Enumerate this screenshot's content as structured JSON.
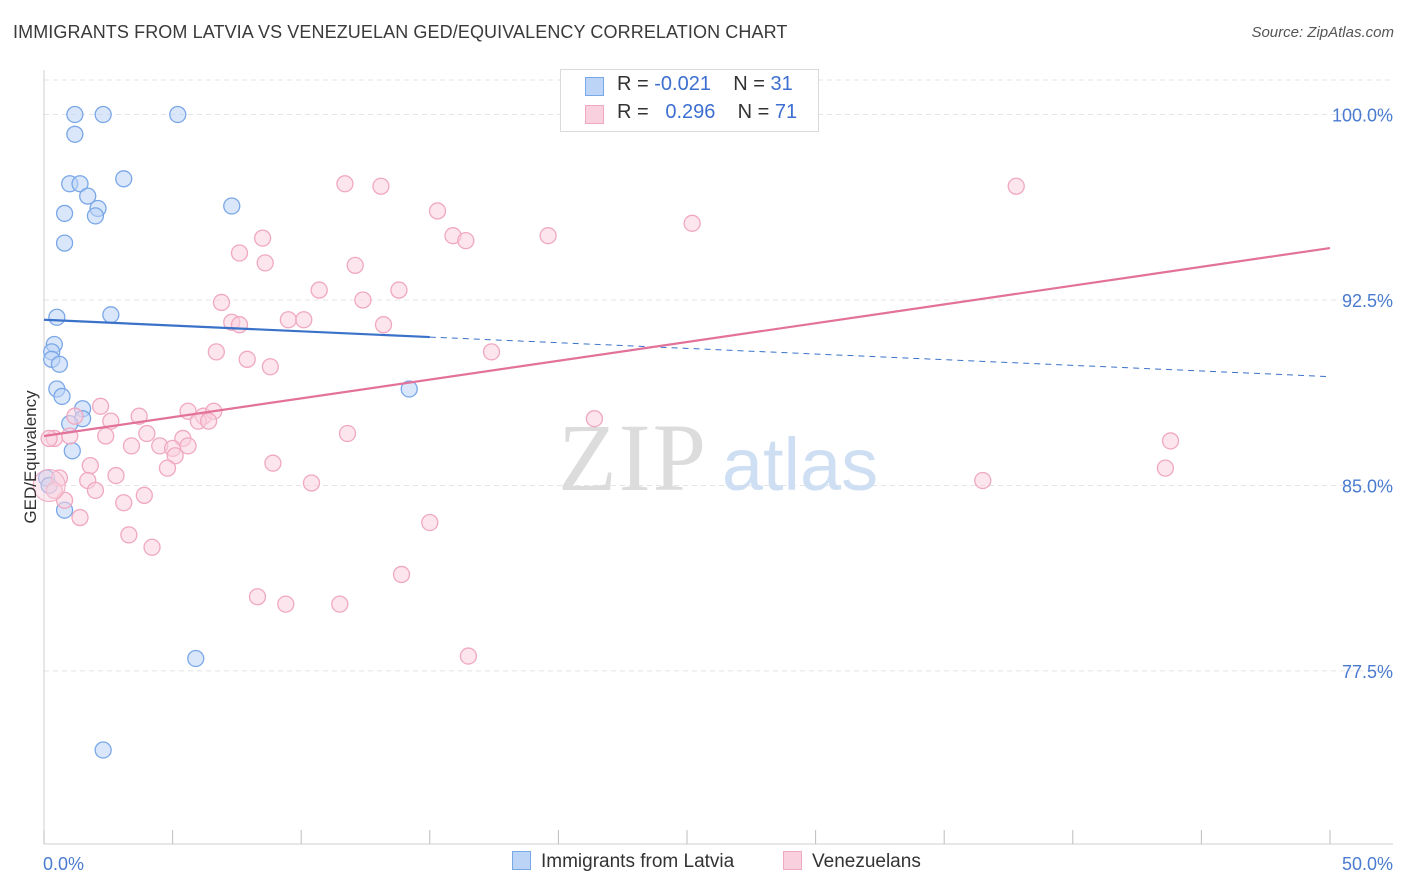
{
  "chart_data": {
    "type": "scatter",
    "title": "IMMIGRANTS FROM LATVIA VS VENEZUELAN GED/EQUIVALENCY CORRELATION CHART",
    "source": "Source: ZipAtlas.com",
    "xlabel": "",
    "ylabel": "GED/Equivalency",
    "xlim": [
      0,
      50
    ],
    "ylim": [
      70.5,
      101.8
    ],
    "x_tick_labels": [
      "0.0%",
      "50.0%"
    ],
    "y_ticks": [
      100.0,
      92.5,
      85.0,
      77.5
    ],
    "y_tick_labels": [
      "100.0%",
      "92.5%",
      "85.0%",
      "77.5%"
    ],
    "grid": true,
    "watermark": "ZIPatlas",
    "legend": {
      "r_label": "R =",
      "n_label": "N =",
      "entries": [
        {
          "name": "Immigrants from Latvia",
          "r": "-0.021",
          "n": "31"
        },
        {
          "name": "Venezuelans",
          "r": "0.296",
          "n": "71"
        }
      ]
    },
    "series": [
      {
        "name": "Immigrants from Latvia",
        "color": "#7aa7e8",
        "fill": "#bcd4f5",
        "line_color": "#3a72c9",
        "trend": {
          "x0": 0,
          "y0": 91.7,
          "x1": 15,
          "y1": 91.0,
          "dash_to_x": 50,
          "dash_to_y": 89.4
        },
        "points": [
          [
            1.2,
            100.0
          ],
          [
            2.3,
            100.0
          ],
          [
            5.2,
            100.0
          ],
          [
            1.2,
            99.2
          ],
          [
            3.1,
            97.4
          ],
          [
            1.0,
            97.2
          ],
          [
            1.4,
            97.2
          ],
          [
            1.7,
            96.7
          ],
          [
            2.1,
            96.2
          ],
          [
            0.8,
            96.0
          ],
          [
            2.0,
            95.9
          ],
          [
            7.3,
            96.3
          ],
          [
            0.8,
            94.8
          ],
          [
            0.5,
            91.8
          ],
          [
            2.6,
            91.9
          ],
          [
            0.4,
            90.7
          ],
          [
            0.3,
            90.4
          ],
          [
            0.3,
            90.1
          ],
          [
            0.6,
            89.9
          ],
          [
            0.5,
            88.9
          ],
          [
            0.7,
            88.6
          ],
          [
            1.5,
            88.1
          ],
          [
            1.5,
            87.7
          ],
          [
            1.0,
            87.5
          ],
          [
            1.1,
            86.4
          ],
          [
            14.2,
            88.9
          ],
          [
            0.1,
            85.3
          ],
          [
            0.8,
            84.0
          ],
          [
            5.9,
            78.0
          ],
          [
            2.3,
            74.3
          ],
          [
            0.2,
            85.0
          ]
        ]
      },
      {
        "name": "Venezuelans",
        "color": "#f0a8c0",
        "fill": "#f9d0de",
        "line_color": "#e2729a",
        "trend": {
          "x0": 0,
          "y0": 87.0,
          "x1": 50,
          "y1": 94.6
        },
        "points": [
          [
            11.7,
            97.2
          ],
          [
            13.1,
            97.1
          ],
          [
            15.3,
            96.1
          ],
          [
            15.9,
            95.1
          ],
          [
            16.4,
            94.9
          ],
          [
            19.6,
            95.1
          ],
          [
            25.2,
            95.6
          ],
          [
            37.8,
            97.1
          ],
          [
            8.5,
            95.0
          ],
          [
            7.6,
            94.4
          ],
          [
            8.6,
            94.0
          ],
          [
            12.1,
            93.9
          ],
          [
            10.7,
            92.9
          ],
          [
            13.8,
            92.9
          ],
          [
            6.9,
            92.4
          ],
          [
            12.4,
            92.5
          ],
          [
            7.3,
            91.6
          ],
          [
            7.6,
            91.5
          ],
          [
            9.5,
            91.7
          ],
          [
            10.1,
            91.7
          ],
          [
            13.2,
            91.5
          ],
          [
            6.7,
            90.4
          ],
          [
            17.4,
            90.4
          ],
          [
            7.9,
            90.1
          ],
          [
            8.8,
            89.8
          ],
          [
            2.2,
            88.2
          ],
          [
            3.7,
            87.8
          ],
          [
            5.6,
            88.0
          ],
          [
            6.2,
            87.8
          ],
          [
            6.6,
            88.0
          ],
          [
            1.2,
            87.8
          ],
          [
            2.6,
            87.6
          ],
          [
            6.0,
            87.6
          ],
          [
            6.4,
            87.6
          ],
          [
            21.4,
            87.7
          ],
          [
            1.0,
            87.0
          ],
          [
            2.4,
            87.0
          ],
          [
            4.0,
            87.1
          ],
          [
            11.8,
            87.1
          ],
          [
            5.4,
            86.9
          ],
          [
            3.4,
            86.6
          ],
          [
            4.5,
            86.6
          ],
          [
            5.0,
            86.5
          ],
          [
            5.6,
            86.6
          ],
          [
            5.1,
            86.2
          ],
          [
            0.4,
            86.9
          ],
          [
            8.9,
            85.9
          ],
          [
            1.8,
            85.8
          ],
          [
            4.8,
            85.7
          ],
          [
            2.8,
            85.4
          ],
          [
            1.7,
            85.2
          ],
          [
            0.6,
            85.3
          ],
          [
            10.4,
            85.1
          ],
          [
            36.5,
            85.2
          ],
          [
            43.8,
            86.8
          ],
          [
            43.6,
            85.7
          ],
          [
            0.8,
            84.4
          ],
          [
            2.0,
            84.8
          ],
          [
            3.1,
            84.3
          ],
          [
            3.9,
            84.6
          ],
          [
            1.4,
            83.7
          ],
          [
            15.0,
            83.5
          ],
          [
            3.3,
            83.0
          ],
          [
            4.2,
            82.5
          ],
          [
            13.9,
            81.4
          ],
          [
            8.3,
            80.5
          ],
          [
            9.4,
            80.2
          ],
          [
            11.5,
            80.2
          ],
          [
            16.5,
            78.1
          ],
          [
            0.2,
            86.9
          ],
          [
            0.4,
            84.8
          ]
        ]
      }
    ]
  }
}
